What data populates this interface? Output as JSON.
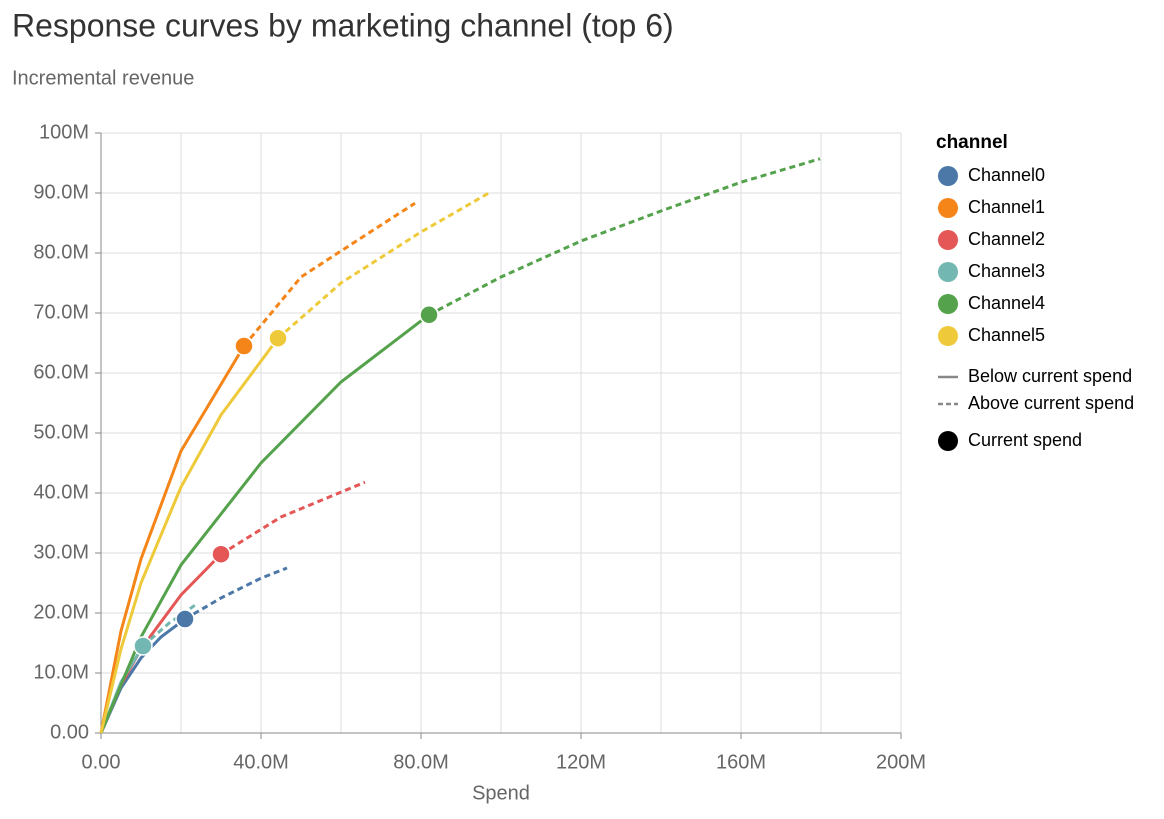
{
  "chart_data": {
    "type": "line",
    "title": "Response curves by marketing channel (top 6)",
    "subtitle": "Incremental revenue",
    "x_label": "Spend",
    "legend_title": "channel",
    "line_style_legend": [
      "Below current spend",
      "Above current spend"
    ],
    "point_legend": "Current spend",
    "xlim": [
      0,
      200000000
    ],
    "ylim": [
      0,
      100000000
    ],
    "xticks": [
      {
        "value": 0,
        "label": "0.00"
      },
      {
        "value": 40000000,
        "label": "40.0M"
      },
      {
        "value": 80000000,
        "label": "80.0M"
      },
      {
        "value": 120000000,
        "label": "120M"
      },
      {
        "value": 160000000,
        "label": "160M"
      },
      {
        "value": 200000000,
        "label": "200M"
      }
    ],
    "xgrid": [
      0,
      20000000,
      40000000,
      60000000,
      80000000,
      100000000,
      120000000,
      140000000,
      160000000,
      180000000,
      200000000
    ],
    "yticks": [
      {
        "value": 0,
        "label": "0.00"
      },
      {
        "value": 10000000,
        "label": "10.0M"
      },
      {
        "value": 20000000,
        "label": "20.0M"
      },
      {
        "value": 30000000,
        "label": "30.0M"
      },
      {
        "value": 40000000,
        "label": "40.0M"
      },
      {
        "value": 50000000,
        "label": "50.0M"
      },
      {
        "value": 60000000,
        "label": "60.0M"
      },
      {
        "value": 70000000,
        "label": "70.0M"
      },
      {
        "value": 80000000,
        "label": "80.0M"
      },
      {
        "value": 90000000,
        "label": "90.0M"
      },
      {
        "value": 100000000,
        "label": "100M"
      }
    ],
    "grid": true,
    "series": [
      {
        "name": "Channel0",
        "color": "#4c78a8",
        "current_spend": 21000000,
        "x": [
          0,
          5000000,
          10000000,
          15000000,
          21000000,
          30000000,
          40000000,
          46500000
        ],
        "values": [
          0,
          7500000,
          12500000,
          16000000,
          19000000,
          22500000,
          25800000,
          27500000
        ]
      },
      {
        "name": "Channel1",
        "color": "#f58518",
        "current_spend": 35750000,
        "x": [
          0,
          5000000,
          10000000,
          20000000,
          35750000,
          50000000,
          65000000,
          78500000
        ],
        "values": [
          0,
          17000000,
          29000000,
          47000000,
          64500000,
          76000000,
          82500000,
          88300000
        ]
      },
      {
        "name": "Channel2",
        "color": "#e45756",
        "current_spend": 30000000,
        "x": [
          0,
          5000000,
          10000000,
          20000000,
          30000000,
          45000000,
          66000000
        ],
        "values": [
          0,
          8000000,
          14000000,
          23000000,
          29800000,
          36000000,
          41800000
        ]
      },
      {
        "name": "Channel3",
        "color": "#72b7b2",
        "current_spend": 10500000,
        "x": [
          0,
          5000000,
          10500000,
          17000000,
          23500000
        ],
        "values": [
          0,
          8500000,
          14500000,
          18300000,
          21300000
        ]
      },
      {
        "name": "Channel4",
        "color": "#54a24b",
        "current_spend": 82000000,
        "x": [
          0,
          10000000,
          20000000,
          40000000,
          60000000,
          82000000,
          100000000,
          120000000,
          140000000,
          160000000,
          179750000
        ],
        "values": [
          0,
          16000000,
          28000000,
          45000000,
          58500000,
          69700000,
          76000000,
          82000000,
          87000000,
          91800000,
          95700000
        ]
      },
      {
        "name": "Channel5",
        "color": "#eeca3b",
        "current_spend": 44250000,
        "x": [
          0,
          5000000,
          10000000,
          20000000,
          30000000,
          44250000,
          60000000,
          80000000,
          97500000
        ],
        "values": [
          0,
          14000000,
          25000000,
          41000000,
          53000000,
          65800000,
          75000000,
          83500000,
          90200000
        ]
      }
    ]
  }
}
